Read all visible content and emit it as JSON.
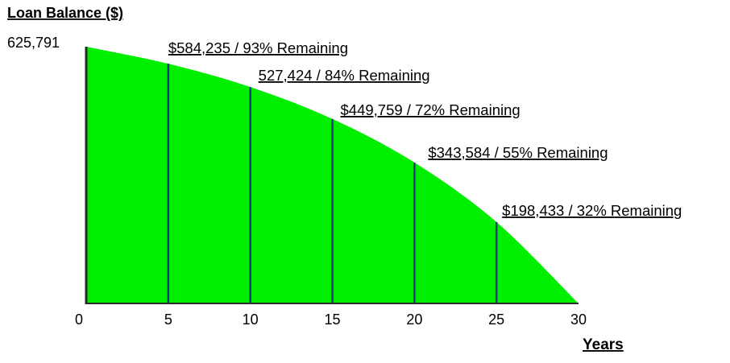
{
  "chart_data": {
    "type": "area",
    "title": "",
    "ylabel": "Loan Balance ($)",
    "xlabel": "Years",
    "y_top_label": "625,791",
    "xlim": [
      0,
      30
    ],
    "ylim": [
      0,
      625791
    ],
    "x_ticks": [
      0,
      5,
      10,
      15,
      20,
      25,
      30
    ],
    "x_tick_labels": [
      "0",
      "5",
      "10",
      "15",
      "20",
      "25",
      "30"
    ],
    "series": [
      {
        "x": [
          0,
          5,
          10,
          15,
          20,
          25,
          30
        ],
        "values": [
          625791,
          584235,
          527424,
          449759,
          343584,
          198433,
          0
        ]
      }
    ],
    "markers": [
      {
        "x": 5,
        "y": 584235,
        "label": "$584,235 / 93% Remaining"
      },
      {
        "x": 10,
        "y": 527424,
        "label": "527,424 / 84% Remaining"
      },
      {
        "x": 15,
        "y": 449759,
        "label": "$449,759 / 72% Remaining"
      },
      {
        "x": 20,
        "y": 343584,
        "label": "$343,584 / 55% Remaining"
      },
      {
        "x": 25,
        "y": 198433,
        "label": "$198,433 / 32% Remaining"
      }
    ],
    "fill_color": "#00ee00",
    "marker_line_color": "#1f3a7a",
    "axis_color": "#2a2a2a",
    "grid": false,
    "legend": "none"
  }
}
